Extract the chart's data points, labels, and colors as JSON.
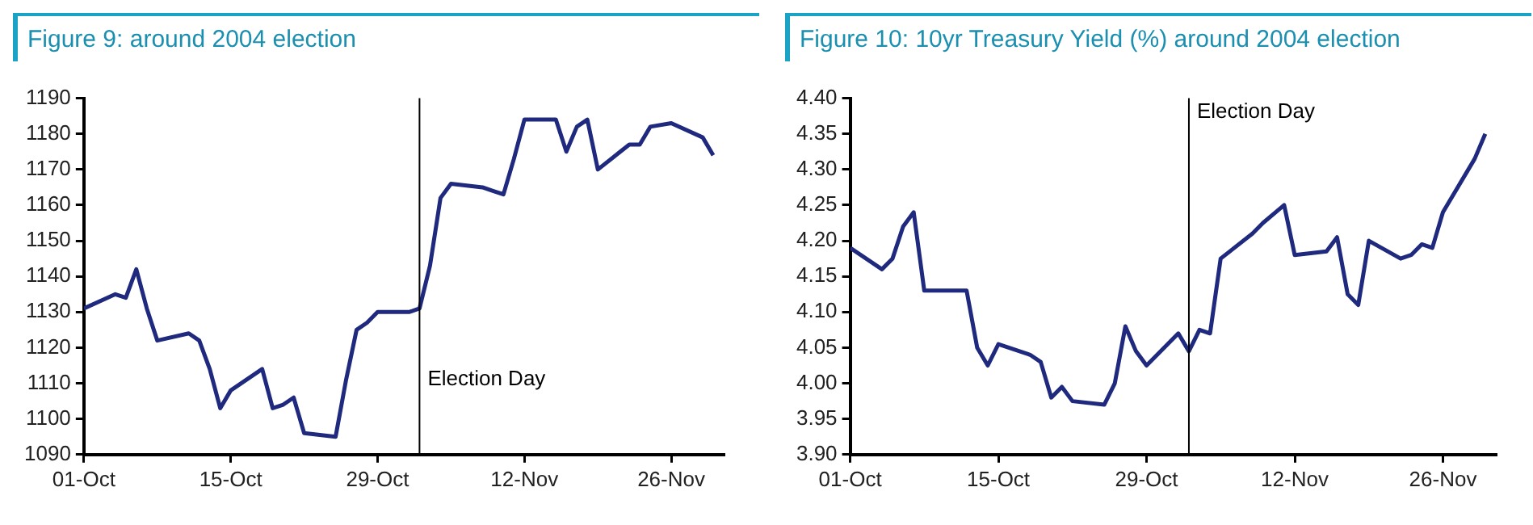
{
  "chart_data": [
    {
      "type": "line",
      "title": "Figure 9: around 2004 election",
      "x": [
        "2004-10-01",
        "2004-10-04",
        "2004-10-05",
        "2004-10-06",
        "2004-10-07",
        "2004-10-08",
        "2004-10-11",
        "2004-10-12",
        "2004-10-13",
        "2004-10-14",
        "2004-10-15",
        "2004-10-18",
        "2004-10-19",
        "2004-10-20",
        "2004-10-21",
        "2004-10-22",
        "2004-10-25",
        "2004-10-26",
        "2004-10-27",
        "2004-10-28",
        "2004-10-29",
        "2004-11-01",
        "2004-11-02",
        "2004-11-03",
        "2004-11-04",
        "2004-11-05",
        "2004-11-08",
        "2004-11-09",
        "2004-11-10",
        "2004-11-11",
        "2004-11-12",
        "2004-11-15",
        "2004-11-16",
        "2004-11-17",
        "2004-11-18",
        "2004-11-19",
        "2004-11-22",
        "2004-11-23",
        "2004-11-24",
        "2004-11-26",
        "2004-11-29",
        "2004-11-30"
      ],
      "series": [
        {
          "color": "#1f2a7e",
          "values": [
            1131,
            1135,
            1134,
            1142,
            1131,
            1122,
            1124,
            1122,
            1114,
            1103,
            1108,
            1114,
            1103,
            1104,
            1106,
            1096,
            1095,
            1111,
            1125,
            1127,
            1130,
            1130,
            1131,
            1143,
            1162,
            1166,
            1165,
            1164,
            1163,
            1173,
            1184,
            1184,
            1175,
            1182,
            1184,
            1170,
            1177,
            1177,
            1182,
            1183,
            1179,
            1174
          ]
        }
      ],
      "xlim": [
        "2004-10-01",
        "2004-12-01"
      ],
      "xticks": [
        {
          "value": "2004-10-01",
          "label": "01-Oct"
        },
        {
          "value": "2004-10-15",
          "label": "15-Oct"
        },
        {
          "value": "2004-10-29",
          "label": "29-Oct"
        },
        {
          "value": "2004-11-12",
          "label": "12-Nov"
        },
        {
          "value": "2004-11-26",
          "label": "26-Nov"
        }
      ],
      "ylim": [
        1090,
        1190
      ],
      "yticks": [
        1090,
        1100,
        1110,
        1120,
        1130,
        1140,
        1150,
        1160,
        1170,
        1180,
        1190
      ],
      "ref_lines": [
        {
          "axis": "x",
          "value": "2004-11-02",
          "color": "#000000"
        }
      ],
      "annotations": [
        {
          "text": "Election Day",
          "x": "2004-11-02",
          "y": 1111
        }
      ],
      "grid": false,
      "legend": false,
      "marker": "none",
      "line_style": "solid"
    },
    {
      "type": "line",
      "title": "Figure 10: 10yr Treasury Yield (%) around 2004 election",
      "x": [
        "2004-10-01",
        "2004-10-04",
        "2004-10-05",
        "2004-10-06",
        "2004-10-07",
        "2004-10-08",
        "2004-10-11",
        "2004-10-12",
        "2004-10-13",
        "2004-10-14",
        "2004-10-15",
        "2004-10-18",
        "2004-10-19",
        "2004-10-20",
        "2004-10-21",
        "2004-10-22",
        "2004-10-25",
        "2004-10-26",
        "2004-10-27",
        "2004-10-28",
        "2004-10-29",
        "2004-11-01",
        "2004-11-02",
        "2004-11-03",
        "2004-11-04",
        "2004-11-05",
        "2004-11-08",
        "2004-11-09",
        "2004-11-11",
        "2004-11-12",
        "2004-11-15",
        "2004-11-16",
        "2004-11-17",
        "2004-11-18",
        "2004-11-19",
        "2004-11-22",
        "2004-11-23",
        "2004-11-24",
        "2004-11-25",
        "2004-11-26",
        "2004-11-29",
        "2004-11-30"
      ],
      "series": [
        {
          "color": "#1f2a7e",
          "values": [
            4.19,
            4.16,
            4.175,
            4.22,
            4.24,
            4.13,
            4.13,
            4.13,
            4.05,
            4.025,
            4.055,
            4.04,
            4.03,
            3.98,
            3.995,
            3.975,
            3.97,
            4.0,
            4.08,
            4.045,
            4.025,
            4.07,
            4.045,
            4.075,
            4.07,
            4.175,
            4.21,
            4.225,
            4.25,
            4.18,
            4.185,
            4.205,
            4.125,
            4.11,
            4.2,
            4.175,
            4.18,
            4.195,
            4.19,
            4.24,
            4.315,
            4.35
          ]
        }
      ],
      "xlim": [
        "2004-10-01",
        "2004-12-01"
      ],
      "xticks": [
        {
          "value": "2004-10-01",
          "label": "01-Oct"
        },
        {
          "value": "2004-10-15",
          "label": "15-Oct"
        },
        {
          "value": "2004-10-29",
          "label": "29-Oct"
        },
        {
          "value": "2004-11-12",
          "label": "12-Nov"
        },
        {
          "value": "2004-11-26",
          "label": "26-Nov"
        }
      ],
      "ylim": [
        3.9,
        4.4
      ],
      "yticks": [
        {
          "value": 3.9,
          "label": "3.90"
        },
        {
          "value": 3.95,
          "label": "3.95"
        },
        {
          "value": 4.0,
          "label": "4.00"
        },
        {
          "value": 4.05,
          "label": "4.05"
        },
        {
          "value": 4.1,
          "label": "4.10"
        },
        {
          "value": 4.15,
          "label": "4.15"
        },
        {
          "value": 4.2,
          "label": "4.20"
        },
        {
          "value": 4.25,
          "label": "4.25"
        },
        {
          "value": 4.3,
          "label": "4.30"
        },
        {
          "value": 4.35,
          "label": "4.35"
        },
        {
          "value": 4.4,
          "label": "4.40"
        }
      ],
      "ref_lines": [
        {
          "axis": "x",
          "value": "2004-11-02",
          "color": "#000000"
        }
      ],
      "annotations": [
        {
          "text": "Election Day",
          "x": "2004-11-02",
          "y": 4.38
        }
      ],
      "grid": false,
      "legend": false,
      "marker": "none",
      "line_style": "solid"
    }
  ]
}
